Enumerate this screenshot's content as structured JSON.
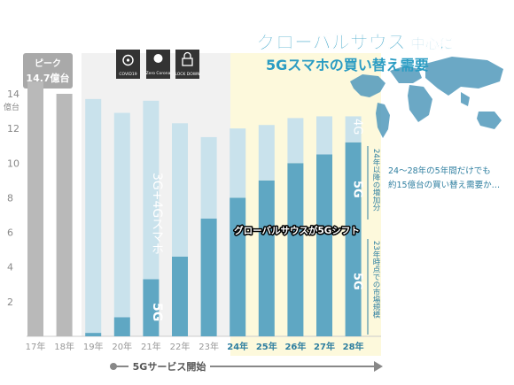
{
  "title": {
    "line1": "グローバルサウス",
    "line1_suffix": "中心に",
    "line2": "5Gスマホの買い替え需要"
  },
  "peak": {
    "label": "ピーク",
    "value": "14.7億台"
  },
  "event_icons": [
    {
      "name": "covid19-icon",
      "label": "COVID19"
    },
    {
      "name": "zero-corona-icon",
      "label": "Zero Corona"
    },
    {
      "name": "lockdown-icon",
      "label": "LOCK DOWN"
    }
  ],
  "annotations": {
    "three_four_g": "3G+4Gスマホ",
    "five_g_21": "5G",
    "four_g_28": "4G",
    "five_g_28_top": "5G",
    "five_g_28_bottom": "5G",
    "increase_since_24": "24年以降の増加分",
    "market_size_23": "23年時点での市場規模",
    "callout": [
      "24〜28年の5年間だけでも",
      "約15億台の買い替え需要か…"
    ],
    "shift": "グローバルサウスが5Gシフト"
  },
  "service_start": "5Gサービス開始",
  "colors": {
    "gray": "#b9b9b9",
    "light_blue": "#c9e2ec",
    "blue": "#5fa7c3",
    "accent_title": "#2a9cc3",
    "forecast_shade": "#fdf9dc",
    "history_shade": "#f1f1f1"
  },
  "chart_data": {
    "type": "bar",
    "ylabel": "億台",
    "ylim": [
      0,
      14
    ],
    "yticks": [
      2,
      4,
      6,
      8,
      10,
      12,
      14
    ],
    "categories": [
      "17年",
      "18年",
      "19年",
      "20年",
      "21年",
      "22年",
      "23年",
      "24年",
      "25年",
      "26年",
      "27年",
      "28年"
    ],
    "forecast_categories": [
      "24年",
      "25年",
      "26年",
      "27年",
      "28年"
    ],
    "series": [
      {
        "key": "pre",
        "values": [
          14.7,
          14.0,
          0,
          0,
          0,
          0,
          0,
          0,
          0,
          0,
          0,
          0
        ]
      },
      {
        "key": "g5",
        "values": [
          0,
          0,
          0.2,
          1.1,
          3.3,
          4.6,
          6.8,
          8.0,
          9.0,
          10.0,
          10.5,
          11.2
        ]
      },
      {
        "key": "g34",
        "values": [
          0,
          0,
          13.5,
          11.8,
          10.3,
          7.7,
          4.7,
          4.0,
          3.2,
          2.6,
          2.2,
          1.5
        ]
      }
    ]
  }
}
